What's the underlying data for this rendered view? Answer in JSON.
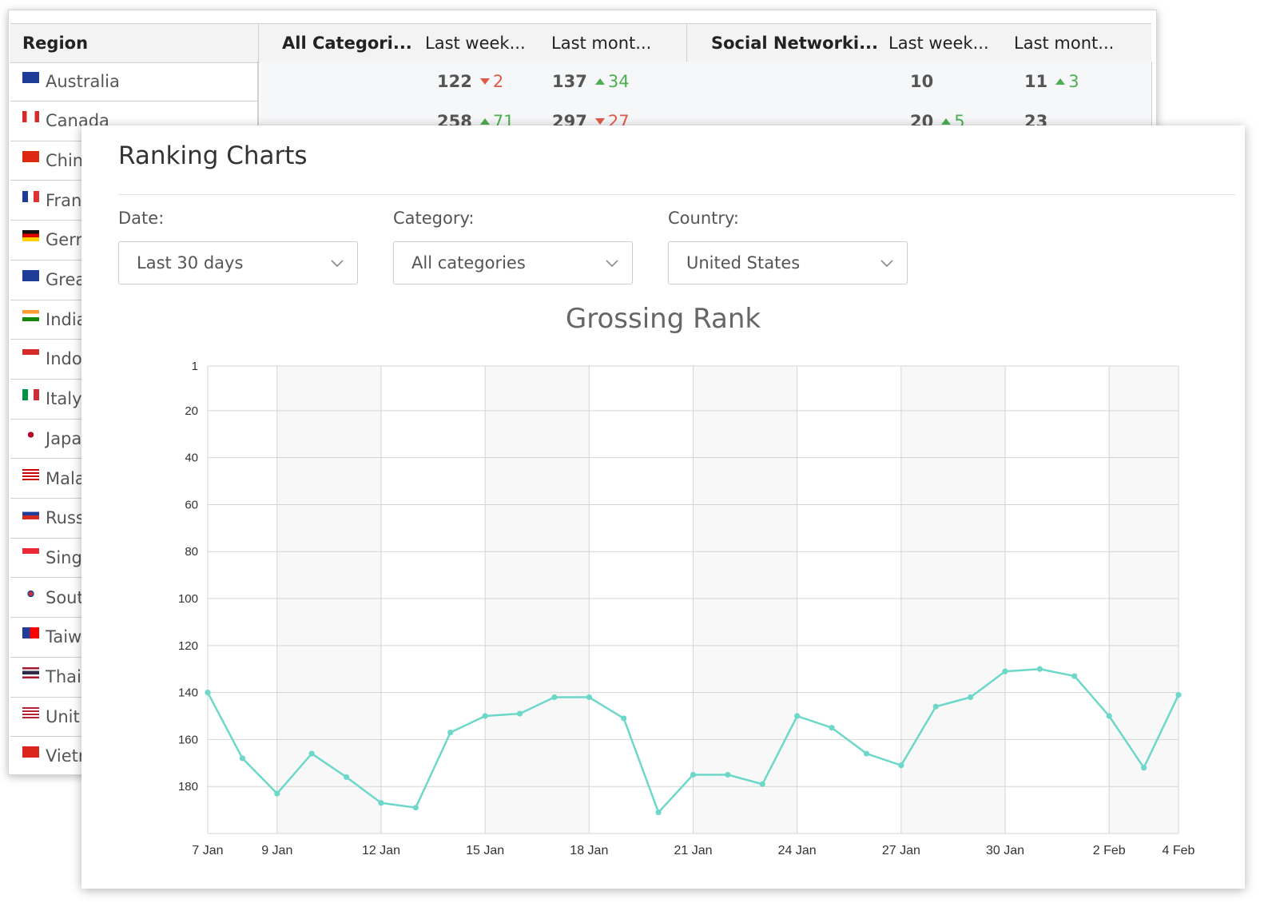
{
  "table": {
    "headers": {
      "region": "Region",
      "all_categories": "All Categori...",
      "all_last_week": "Last week...",
      "all_last_month": "Last mont...",
      "social": "Social Networki...",
      "social_last_week": "Last week...",
      "social_last_month": "Last mont..."
    },
    "rows": [
      {
        "region": "Australia",
        "all_week": "122",
        "all_week_chg": "2",
        "all_week_dir": "down",
        "all_month": "137",
        "all_month_chg": "34",
        "all_month_dir": "up",
        "soc_week": "10",
        "soc_week_chg": "",
        "soc_week_dir": "",
        "soc_month": "11",
        "soc_month_chg": "3",
        "soc_month_dir": "up"
      },
      {
        "region": "Canada",
        "all_week": "258",
        "all_week_chg": "71",
        "all_week_dir": "up",
        "all_month": "297",
        "all_month_chg": "27",
        "all_month_dir": "down",
        "soc_week": "20",
        "soc_week_chg": "5",
        "soc_week_dir": "up",
        "soc_month": "23",
        "soc_month_chg": "",
        "soc_month_dir": ""
      },
      {
        "region": "Chin"
      },
      {
        "region": "Fran"
      },
      {
        "region": "Gerr"
      },
      {
        "region": "Grea"
      },
      {
        "region": "India"
      },
      {
        "region": "Indo"
      },
      {
        "region": "Italy"
      },
      {
        "region": "Japa"
      },
      {
        "region": "Mala"
      },
      {
        "region": "Russ"
      },
      {
        "region": "Sing"
      },
      {
        "region": "Sout"
      },
      {
        "region": "Taiw"
      },
      {
        "region": "Thai"
      },
      {
        "region": "Unit"
      },
      {
        "region": "Vietr"
      }
    ],
    "flags": [
      "au",
      "ca",
      "cn",
      "fr",
      "de",
      "gb",
      "in",
      "id",
      "it",
      "jp",
      "my",
      "ru",
      "sg",
      "kr",
      "tw",
      "th",
      "us",
      "vn"
    ]
  },
  "panel": {
    "title": "Ranking Charts",
    "filters": [
      {
        "label": "Date:",
        "value": "Last 30 days"
      },
      {
        "label": "Category:",
        "value": "All categories"
      },
      {
        "label": "Country:",
        "value": "United States"
      }
    ]
  },
  "colors": {
    "line": "#6dd8c9",
    "grid": "#d4d4d4",
    "band": "#f8f8f8",
    "up": "#4caf50",
    "down": "#e05a4a"
  },
  "chart_data": {
    "type": "line",
    "title": "Grossing Rank",
    "y_reversed": true,
    "ylim": [
      1,
      200
    ],
    "yticks": [
      1,
      20,
      40,
      60,
      80,
      100,
      120,
      140,
      160,
      180
    ],
    "xlabels": [
      "7 Jan",
      "9 Jan",
      "12 Jan",
      "15 Jan",
      "18 Jan",
      "21 Jan",
      "24 Jan",
      "27 Jan",
      "30 Jan",
      "2 Feb",
      "4 Feb"
    ],
    "xlabel_days": [
      0,
      2,
      5,
      8,
      11,
      14,
      17,
      20,
      23,
      26,
      28
    ],
    "series": [
      {
        "name": "Grossing Rank",
        "x": [
          0,
          1,
          2,
          3,
          4,
          5,
          6,
          7,
          8,
          9,
          10,
          11,
          12,
          13,
          14,
          15,
          16,
          17,
          18,
          19,
          20,
          21,
          22,
          23,
          24,
          25,
          26,
          27,
          28
        ],
        "values": [
          140,
          168,
          183,
          166,
          176,
          187,
          189,
          157,
          150,
          149,
          142,
          142,
          151,
          191,
          175,
          175,
          179,
          150,
          155,
          166,
          171,
          146,
          142,
          131,
          130,
          133,
          150,
          172,
          141
        ]
      }
    ]
  }
}
